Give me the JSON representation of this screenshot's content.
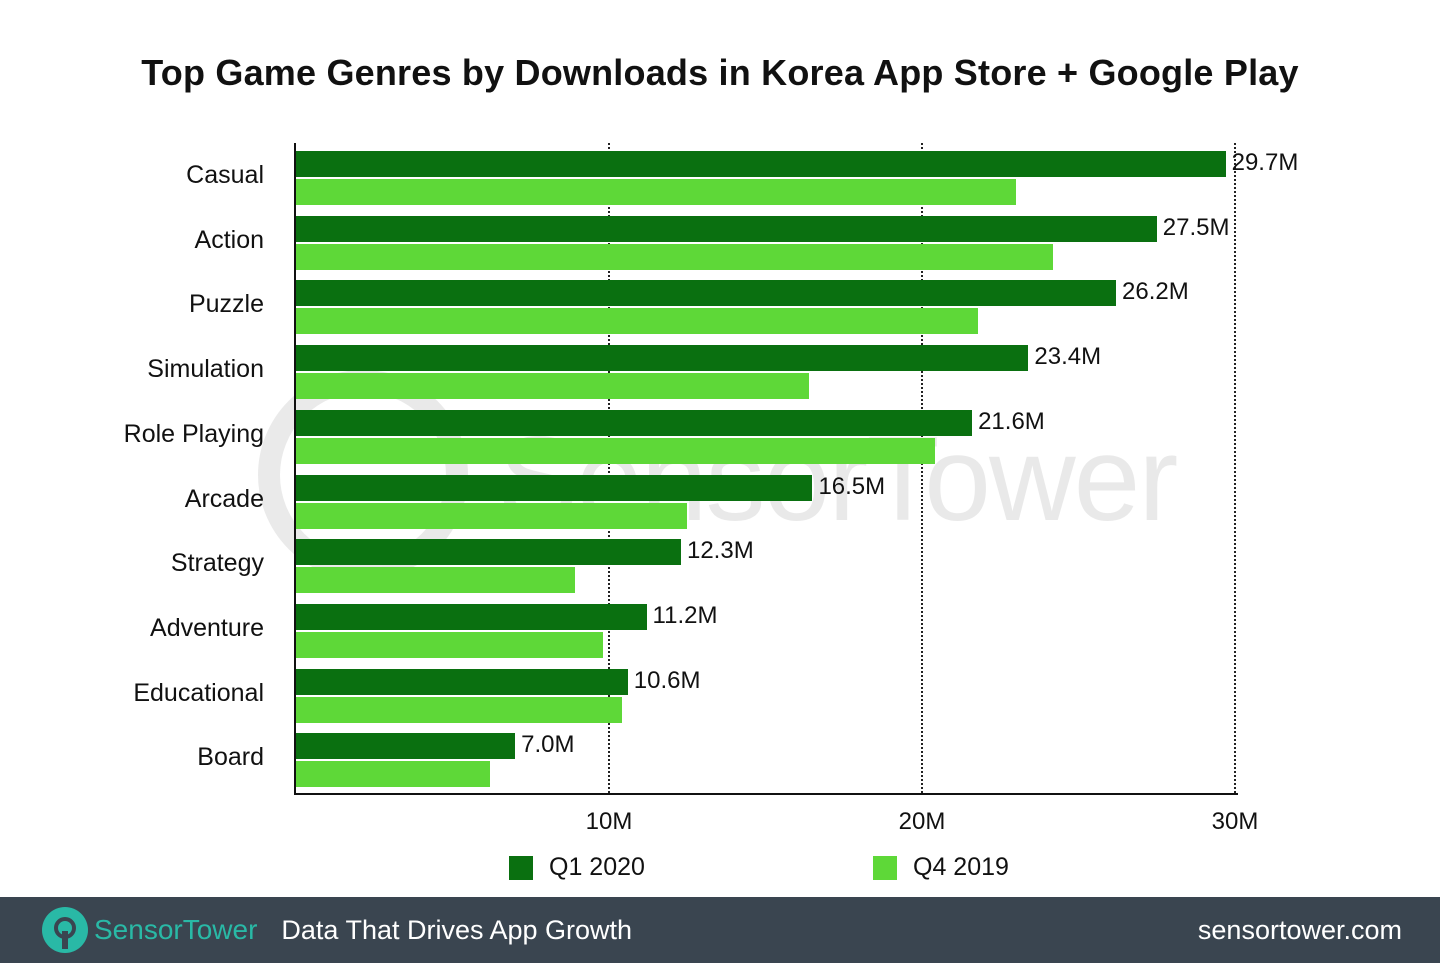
{
  "title": "Top Game Genres by Downloads in Korea App Store + Google Play",
  "colors": {
    "q1_2020": "#0a7010",
    "q4_2019": "#5ed838",
    "footer_bg": "#3a4550",
    "brand": "#29b9a6"
  },
  "chart_data": {
    "type": "bar",
    "orientation": "horizontal",
    "title": "Top Game Genres by Downloads in Korea App Store + Google Play",
    "xlabel": "",
    "ylabel": "",
    "xlim": [
      0,
      30
    ],
    "unit": "M downloads",
    "x_ticks": [
      "10M",
      "20M",
      "30M"
    ],
    "grid": "vertical dotted at 10M, 20M, 30M",
    "legend_position": "bottom",
    "categories": [
      "Casual",
      "Action",
      "Puzzle",
      "Simulation",
      "Role Playing",
      "Arcade",
      "Strategy",
      "Adventure",
      "Educational",
      "Board"
    ],
    "series": [
      {
        "name": "Q1 2020",
        "values": [
          29.7,
          27.5,
          26.2,
          23.4,
          21.6,
          16.5,
          12.3,
          11.2,
          10.6,
          7.0
        ],
        "labels": [
          "29.7M",
          "27.5M",
          "26.2M",
          "23.4M",
          "21.6M",
          "16.5M",
          "12.3M",
          "11.2M",
          "10.6M",
          "7.0M"
        ]
      },
      {
        "name": "Q4 2019",
        "values": [
          23.0,
          24.2,
          21.8,
          16.4,
          20.4,
          12.5,
          8.9,
          9.8,
          10.4,
          6.2
        ]
      }
    ]
  },
  "legend": {
    "q1": "Q1 2020",
    "q4": "Q4 2019"
  },
  "ticks": [
    "10M",
    "20M",
    "30M"
  ],
  "watermark": "SensorTower",
  "footer": {
    "brand": "SensorTower",
    "tagline": "Data That Drives App Growth",
    "site": "sensortower.com"
  }
}
